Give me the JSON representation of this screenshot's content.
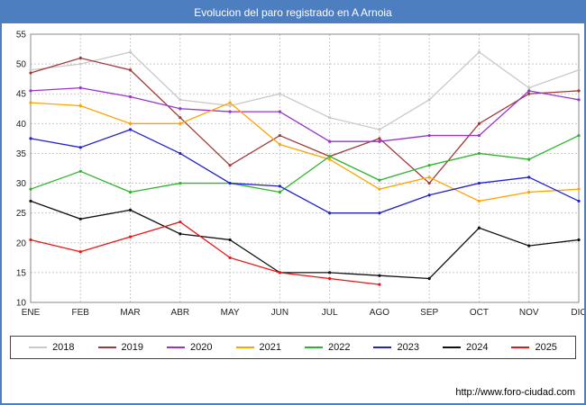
{
  "title": "Evolucion del paro registrado en A Arnoia",
  "footer": {
    "url": "http://www.foro-ciudad.com"
  },
  "chart_data": {
    "type": "line",
    "title": "Evolucion del paro registrado en A Arnoia",
    "xlabel": "",
    "ylabel": "",
    "ylim": [
      10,
      55
    ],
    "ytick_step": 5,
    "grid": true,
    "legend_position": "bottom",
    "categories": [
      "ENE",
      "FEB",
      "MAR",
      "ABR",
      "MAY",
      "JUN",
      "JUL",
      "AGO",
      "SEP",
      "OCT",
      "NOV",
      "DIC"
    ],
    "series": [
      {
        "name": "2018",
        "color": "#c9c9c9",
        "values": [
          49,
          50,
          52,
          44,
          43,
          45,
          41,
          39,
          44,
          52,
          46,
          49
        ]
      },
      {
        "name": "2019",
        "color": "#a03a3a",
        "values": [
          48.5,
          51,
          49,
          41,
          33,
          38,
          34.5,
          37.5,
          30,
          40,
          45,
          45.5
        ]
      },
      {
        "name": "2020",
        "color": "#9933cc",
        "values": [
          45.5,
          46,
          44.5,
          42.5,
          42,
          42,
          37,
          37,
          38,
          38,
          45.5,
          44
        ]
      },
      {
        "name": "2021",
        "color": "#ffa300",
        "values": [
          43.5,
          43,
          40,
          40,
          43.5,
          36.5,
          34,
          29,
          31,
          27,
          28.5,
          29
        ]
      },
      {
        "name": "2022",
        "color": "#2cb52c",
        "values": [
          29,
          32,
          28.5,
          30,
          30,
          28.5,
          34.5,
          30.5,
          33,
          35,
          34,
          38
        ]
      },
      {
        "name": "2023",
        "color": "#2222cc",
        "values": [
          37.5,
          36,
          39,
          35,
          30,
          29.5,
          25,
          25,
          28,
          30,
          31,
          27
        ]
      },
      {
        "name": "2024",
        "color": "#111111",
        "values": [
          27,
          24,
          25.5,
          21.5,
          20.5,
          15,
          15,
          14.5,
          14,
          22.5,
          19.5,
          20.5
        ]
      },
      {
        "name": "2025",
        "color": "#ee1111",
        "values": [
          20.5,
          18.5,
          21,
          23.5,
          17.5,
          15,
          14,
          13
        ]
      }
    ]
  }
}
